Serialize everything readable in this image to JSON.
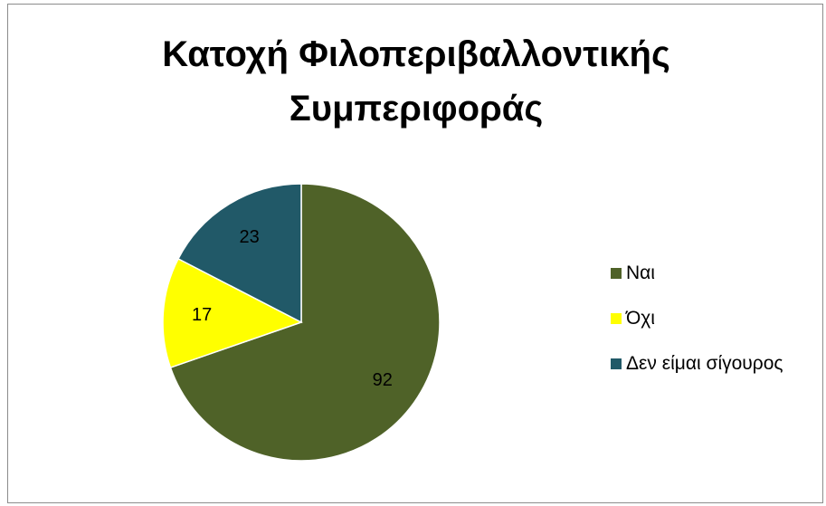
{
  "chart_data": {
    "type": "pie",
    "title": [
      "Κατοχή Φιλοπεριβαλλοντικής",
      "Συμπεριφοράς"
    ],
    "slices": [
      {
        "label": "Ναι",
        "value": 92,
        "color": "#4f6228"
      },
      {
        "label": "Όχι",
        "value": 17,
        "color": "#ffff00"
      },
      {
        "label": "Δεν είμαι σίγουρος",
        "value": 23,
        "color": "#215968"
      }
    ],
    "legend_position": "right",
    "data_labels": true
  }
}
